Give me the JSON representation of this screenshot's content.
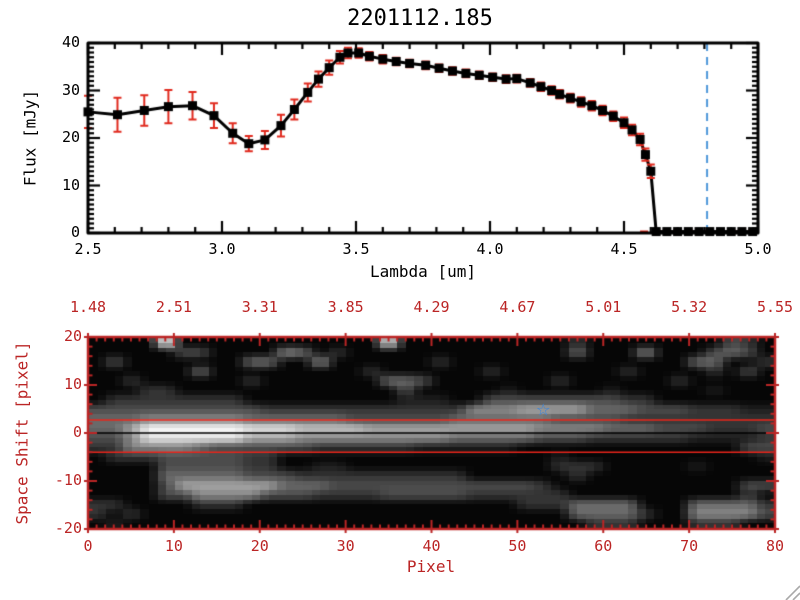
{
  "figure": {
    "background": "#ffffff"
  },
  "chart_data": [
    {
      "type": "line",
      "title": "2201112.185",
      "xlabel": "Lambda [um]",
      "ylabel": "Flux [mJy]",
      "xlim": [
        2.5,
        5.0
      ],
      "ylim": [
        0,
        40
      ],
      "x_ticks": [
        2.5,
        3.0,
        3.5,
        4.0,
        4.5,
        5.0
      ],
      "x_tick_labels": [
        "2.5",
        "3.0",
        "3.5",
        "4.0",
        "4.5",
        "5.0"
      ],
      "x_minor_step": 0.1,
      "y_ticks": [
        0,
        10,
        20,
        30,
        40
      ],
      "y_tick_labels": [
        "0",
        "10",
        "20",
        "30",
        "40"
      ],
      "y_minor_step": 1,
      "line_color": "#000000",
      "marker": "filled-square",
      "error_bar_color": "#e02a1e",
      "points": [
        [
          2.5,
          25.5,
          3.4
        ],
        [
          2.61,
          24.9,
          3.6
        ],
        [
          2.71,
          25.8,
          3.2
        ],
        [
          2.8,
          26.6,
          3.5
        ],
        [
          2.89,
          26.8,
          2.9
        ],
        [
          2.97,
          24.7,
          2.6
        ],
        [
          3.04,
          21.0,
          2.1
        ],
        [
          3.1,
          18.8,
          1.6
        ],
        [
          3.16,
          19.6,
          1.9
        ],
        [
          3.22,
          22.6,
          2.3
        ],
        [
          3.27,
          26.0,
          2.1
        ],
        [
          3.32,
          29.6,
          1.9
        ],
        [
          3.36,
          32.4,
          1.6
        ],
        [
          3.4,
          34.8,
          1.5
        ],
        [
          3.44,
          37.0,
          1.3
        ],
        [
          3.47,
          37.9,
          1.1
        ],
        [
          3.51,
          37.9,
          1.0
        ],
        [
          3.55,
          37.2,
          0.9
        ],
        [
          3.6,
          36.6,
          0.9
        ],
        [
          3.65,
          36.1,
          0.8
        ],
        [
          3.7,
          35.7,
          0.8
        ],
        [
          3.76,
          35.3,
          0.8
        ],
        [
          3.81,
          34.7,
          0.8
        ],
        [
          3.86,
          34.1,
          0.8
        ],
        [
          3.91,
          33.6,
          0.8
        ],
        [
          3.96,
          33.2,
          0.8
        ],
        [
          4.01,
          32.8,
          0.8
        ],
        [
          4.06,
          32.4,
          0.8
        ],
        [
          4.1,
          32.5,
          0.8
        ],
        [
          4.15,
          31.6,
          0.8
        ],
        [
          4.19,
          30.8,
          0.9
        ],
        [
          4.23,
          30.0,
          0.9
        ],
        [
          4.26,
          29.2,
          0.9
        ],
        [
          4.3,
          28.4,
          0.9
        ],
        [
          4.34,
          27.6,
          1.0
        ],
        [
          4.38,
          26.8,
          1.0
        ],
        [
          4.42,
          25.8,
          1.0
        ],
        [
          4.46,
          24.6,
          1.0
        ],
        [
          4.5,
          23.2,
          1.1
        ],
        [
          4.53,
          21.7,
          1.1
        ],
        [
          4.56,
          19.7,
          1.2
        ],
        [
          4.58,
          16.5,
          1.3
        ],
        [
          4.6,
          13.0,
          1.4
        ],
        [
          4.62,
          0.3,
          0.5
        ],
        [
          4.66,
          0.3,
          0.4
        ],
        [
          4.7,
          0.3,
          0.4
        ],
        [
          4.74,
          0.3,
          0.4
        ],
        [
          4.78,
          0.3,
          0.4
        ],
        [
          4.82,
          0.3,
          0.4
        ],
        [
          4.86,
          0.3,
          0.4
        ],
        [
          4.9,
          0.3,
          0.4
        ],
        [
          4.94,
          0.3,
          0.4
        ],
        [
          4.98,
          0.3,
          0.4
        ]
      ],
      "overlays": [
        {
          "type": "vline",
          "x": 4.81,
          "style": "dashed",
          "color": "#4e97d9"
        },
        {
          "type": "hline",
          "y": 0.3,
          "x_from": 4.56,
          "x_to": 5.0,
          "style": "dashed",
          "color": "#dd2214"
        }
      ]
    },
    {
      "type": "heatmap",
      "xlabel": "Pixel",
      "ylabel": "Space Shift [pixel]",
      "xlim": [
        0,
        80
      ],
      "ylim": [
        -20,
        20
      ],
      "x_ticks": [
        0,
        10,
        20,
        30,
        40,
        50,
        60,
        70,
        80
      ],
      "x_tick_labels": [
        "0",
        "10",
        "20",
        "30",
        "40",
        "50",
        "60",
        "70",
        "80"
      ],
      "x_minor_step": 1,
      "y_ticks": [
        20,
        10,
        0,
        -10,
        -20
      ],
      "y_tick_labels": [
        "20",
        "10",
        "0",
        "-10",
        "-20"
      ],
      "y_minor_step": 2,
      "top_axis": {
        "tick_positions": [
          0,
          10,
          20,
          30,
          40,
          50,
          60,
          70,
          80
        ],
        "tick_labels": [
          "1.48",
          "2.51",
          "3.31",
          "3.85",
          "4.29",
          "4.67",
          "5.01",
          "5.32",
          "5.55"
        ]
      },
      "axis_color": "#bb2525",
      "background": "#000000",
      "grid_cols": 40,
      "grid_rows": 20,
      "intensity_scale": "0=black .. 9=white",
      "intensity_rows": [
        "0000900000000000080000000000200000000320",
        "0000033000054020000000000000400050003430",
        "0300000004400500000020000000000000044002",
        "0000004000000000200000020000000200002030",
        "0020000002000000044300000002000000200000",
        "0002200000000000003000001000001000001000",
        "0222222220000000001110033333333220000000",
        "3333333333222222222222555666644433322211",
        "4445555554444443333334444443333222222222",
        "4469999998887777666666666655554443332223",
        "3358888886665555555554444433322222211112",
        "2255554333333222222111111000000000000033",
        "0222333332200000000000000001000000000001",
        "0000333332200110000000000002220000010000",
        "0000444443332222222222000000200000000000",
        "0000366666644433333333333320000000000033",
        "0000335555333222233333222222000000000020",
        "2200002220000000000000000222444400044442",
        "2020000000000000000000000000444420055553",
        "0100000000000000000000000000022200022200"
      ],
      "overlays": [
        {
          "type": "hline",
          "y": 2.7,
          "color": "#e8241a"
        },
        {
          "type": "hline",
          "y": -4.0,
          "color": "#e8241a"
        },
        {
          "type": "hline",
          "y": 0,
          "color": "#000000"
        },
        {
          "type": "star-marker",
          "x": 53,
          "y": 4.7,
          "glyph": "☆",
          "color": "#3585e2"
        }
      ]
    }
  ],
  "resize_grip": {
    "present": true
  }
}
